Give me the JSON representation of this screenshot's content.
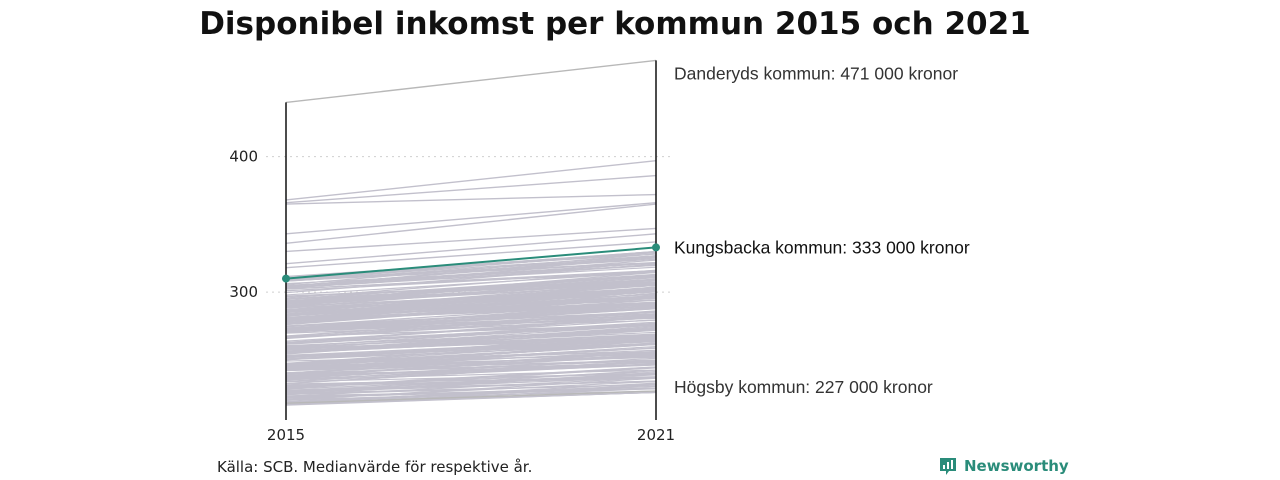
{
  "chart_data": {
    "type": "line",
    "title": "Disponibel inkomst per kommun 2015 och 2021",
    "x": [
      "2015",
      "2021"
    ],
    "ylim": [
      213,
      475
    ],
    "y_ticks": [
      {
        "value": 300,
        "label": "300"
      },
      {
        "value": 400,
        "label": "400"
      }
    ],
    "grid": true,
    "highlight": {
      "name": "Kungsbacka kommun",
      "values": [
        310,
        333
      ],
      "label": "Kungsbacka kommun: 333 000 kronor",
      "color": "#2a8c7a"
    },
    "annotations": [
      {
        "name": "Danderyds kommun",
        "values": [
          440,
          471
        ],
        "label": "Danderyds kommun: 471 000 kronor"
      },
      {
        "name": "Högsby kommun",
        "values": [
          218,
          227
        ],
        "label": "Högsby kommun: 227 000 kronor"
      }
    ],
    "other_series": [
      {
        "values": [
          368,
          397
        ]
      },
      {
        "values": [
          366,
          386
        ]
      },
      {
        "values": [
          365,
          372
        ]
      },
      {
        "values": [
          343,
          366
        ]
      },
      {
        "values": [
          336,
          365
        ]
      },
      {
        "values": [
          330,
          347
        ]
      },
      {
        "values": [
          321,
          343
        ]
      },
      {
        "values": [
          318,
          337
        ]
      }
    ],
    "bulk": {
      "count": 260,
      "start_range": [
        216,
        312
      ],
      "end_range": [
        226,
        330
      ]
    },
    "line_color": "#c2c0cc",
    "axis_color": "#111111"
  },
  "footer": {
    "source": "Källa: SCB. Medianvärde för respektive år.",
    "brand": "Newsworthy"
  }
}
